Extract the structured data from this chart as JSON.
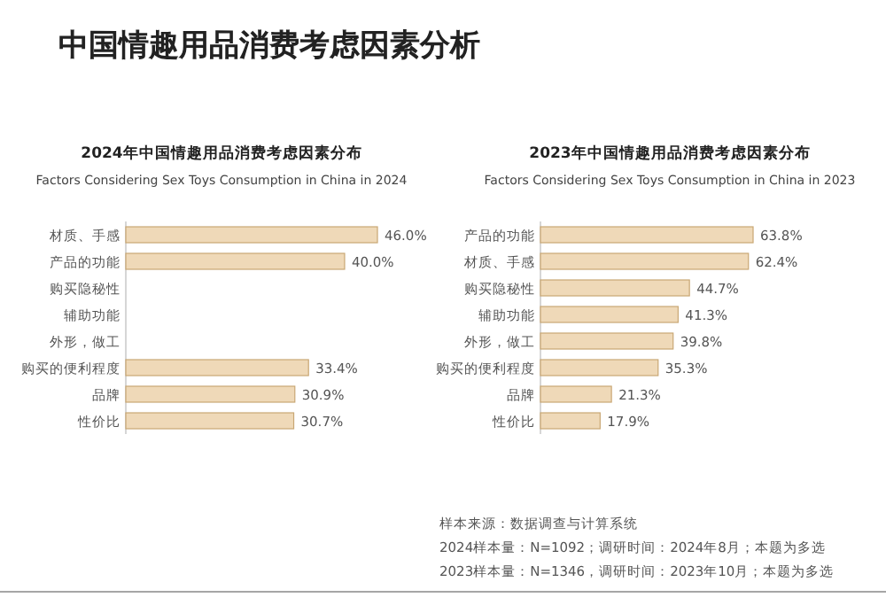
{
  "chart_data": [
    {
      "type": "bar",
      "orientation": "horizontal",
      "title": "2024年中国情趣用品消费考虑因素分布",
      "subtitle": "Factors Considering Sex Toys Consumption in China in 2024",
      "categories": [
        "材质、手感",
        "产品的功能",
        "购买隐秘性",
        "辅助功能",
        "外形，做工",
        "购买的便利程度",
        "品牌",
        "性价比"
      ],
      "series": [
        {
          "color": "#efd9b8",
          "values": [
            46.0,
            40.0,
            null,
            null,
            null,
            33.4,
            30.9,
            30.7
          ],
          "value_labels": [
            "46.0%",
            "40.0%",
            null,
            null,
            null,
            "33.4%",
            "30.9%",
            "30.7%"
          ]
        }
      ],
      "annotations": [
        "中国情趣用品消费考虑因素分析"
      ]
    },
    {
      "type": "bar",
      "orientation": "horizontal",
      "title": "2023年中国情趣用品消费考虑因素分布",
      "subtitle": "Factors Considering Sex Toys Consumption in China in 2023",
      "categories": [
        "产品的功能",
        "材质、手感",
        "购买隐秘性",
        "辅助功能",
        "外形，做工",
        "购买的便利程度",
        "品牌",
        "性价比"
      ],
      "series": [
        {
          "color": "#efd9b8",
          "values": [
            63.8,
            62.4,
            44.7,
            41.3,
            39.8,
            35.3,
            21.3,
            17.9
          ],
          "value_labels": [
            "63.8%",
            "62.4%",
            "44.7%",
            "41.3%",
            "39.8%",
            "35.3%",
            "21.3%",
            "17.9%"
          ]
        }
      ],
      "annotations": [
        "样本来源：数据调查与计算系统",
        "2024样本量：N=1092；调研时间：2024年8月；本题为多选",
        "2023样本量：N=1346，调研时间：2023年10月；本题为多选"
      ]
    }
  ]
}
